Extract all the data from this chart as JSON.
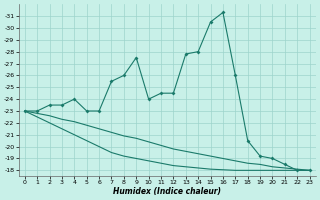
{
  "x": [
    0,
    1,
    2,
    3,
    4,
    5,
    6,
    7,
    8,
    9,
    10,
    11,
    12,
    13,
    14,
    15,
    16,
    17,
    18,
    19,
    20,
    21,
    22,
    23
  ],
  "y_main": [
    -23,
    -23,
    -23.5,
    -23.5,
    -24,
    -23,
    -23,
    -25.5,
    -26,
    -27.5,
    -24,
    -24.5,
    -24.5,
    -27.8,
    -28,
    -30.5,
    -31.3,
    -26,
    -20.5,
    -19.2,
    -19,
    -18.5,
    -18,
    -18
  ],
  "y_line1": [
    -23,
    -22.5,
    -22.0,
    -21.5,
    -21.0,
    -20.5,
    -20.0,
    -19.5,
    -19.2,
    -19.0,
    -18.8,
    -18.6,
    -18.4,
    -18.3,
    -18.2,
    -18.1,
    -18.05,
    -18.0,
    -18.0,
    -18.0,
    -18.0,
    -18.0,
    -18.0,
    -18.0
  ],
  "y_line2": [
    -23,
    -22.8,
    -22.6,
    -22.3,
    -22.1,
    -21.8,
    -21.5,
    -21.2,
    -20.9,
    -20.7,
    -20.4,
    -20.1,
    -19.8,
    -19.6,
    -19.4,
    -19.2,
    -19.0,
    -18.8,
    -18.6,
    -18.5,
    -18.3,
    -18.2,
    -18.1,
    -18.0
  ],
  "bg_color": "#c8f0e8",
  "grid_color": "#9dd4cc",
  "line_color": "#1a7a6a",
  "xlabel": "Humidex (Indice chaleur)",
  "ylim_top": -17.5,
  "ylim_bottom": -32.0,
  "xlim_left": -0.5,
  "xlim_right": 23.5,
  "yticks": [
    -18,
    -19,
    -20,
    -21,
    -22,
    -23,
    -24,
    -25,
    -26,
    -27,
    -28,
    -29,
    -30,
    -31
  ],
  "xticks": [
    0,
    1,
    2,
    3,
    4,
    5,
    6,
    7,
    8,
    9,
    10,
    11,
    12,
    13,
    14,
    15,
    16,
    17,
    18,
    19,
    20,
    21,
    22,
    23
  ]
}
